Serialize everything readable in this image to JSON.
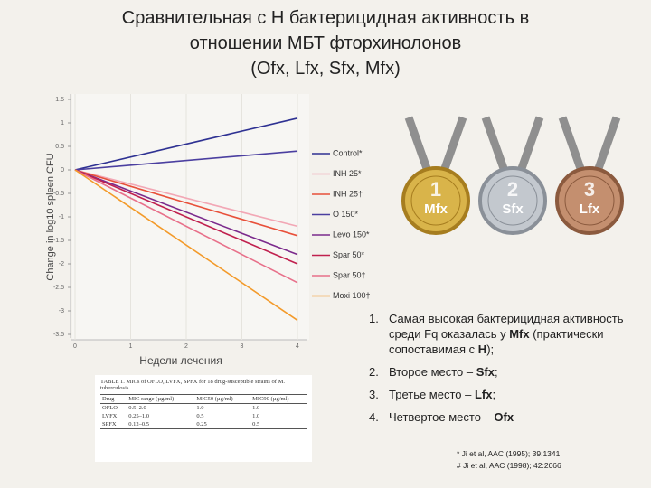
{
  "header": {
    "title_lines": [
      "Сравнительная с Н бактерицидная активность в",
      "отношении МБТ фторхинолонов",
      "(Ofx, Lfx, Sfx, Mfx)"
    ]
  },
  "chart_data": {
    "type": "line",
    "y_label": "Change in log10 spleen CFU",
    "x_label": "Недели лечения",
    "x": [
      0,
      4
    ],
    "xlim": [
      0,
      4
    ],
    "xticks": [
      0,
      1,
      2,
      3,
      4
    ],
    "ylim": [
      -3.5,
      1.5
    ],
    "yticks": [
      1.5,
      1,
      0.5,
      0,
      -0.5,
      -1,
      -1.5,
      -2,
      -2.5,
      -3,
      -3.5
    ],
    "series": [
      {
        "name": "Control*",
        "color": "#2e3192",
        "values": [
          0,
          1.1
        ]
      },
      {
        "name": "INH 25*",
        "color": "#f2a7b5",
        "values": [
          0,
          -1.2
        ]
      },
      {
        "name": "INH 25†",
        "color": "#e8503a",
        "values": [
          0,
          -1.4
        ]
      },
      {
        "name": "O 150*",
        "color": "#4b3fa0",
        "values": [
          0,
          0.4
        ]
      },
      {
        "name": "Levo 150*",
        "color": "#7b2a8c",
        "values": [
          0,
          -1.8
        ]
      },
      {
        "name": "Spar 50*",
        "color": "#c0204e",
        "values": [
          0,
          -2.0
        ]
      },
      {
        "name": "Spar 50†",
        "color": "#e8708a",
        "values": [
          0,
          -2.4
        ]
      },
      {
        "name": "Moxi 100†",
        "color": "#f39a2a",
        "values": [
          0,
          -3.2
        ]
      }
    ]
  },
  "medals": [
    {
      "rank": "1",
      "drug": "Mfx"
    },
    {
      "rank": "2",
      "drug": "Sfx"
    },
    {
      "rank": "3",
      "drug": "Lfx"
    }
  ],
  "list": [
    {
      "number": "1.",
      "parts": [
        "Самая высокая бактерицидная активность среди Fq оказалась у ",
        "Mfx",
        " (практически сопоставимая с ",
        "H",
        ");"
      ]
    },
    {
      "number": "2.",
      "parts": [
        "Второе место – ",
        "Sfx",
        ";"
      ]
    },
    {
      "number": "3.",
      "parts": [
        "Третье место – ",
        "Lfx",
        ";"
      ]
    },
    {
      "number": "4.",
      "parts": [
        "Четвертое место – ",
        "Ofx"
      ]
    }
  ],
  "footnotes": [
    "* Ji et al, AAC (1995); 39:1341",
    "# Ji et al, AAC (1998); 42:2066"
  ],
  "table": {
    "caption": "TABLE 1. MICs of OFLO, LVFX, SPFX for 18 drug-susceptible strains of M. tuberculosis",
    "header": [
      "Drug",
      "MIC range (µg/ml)",
      "MIC50 (µg/ml)",
      "MIC90 (µg/ml)"
    ],
    "rows": [
      [
        "OFLO",
        "0.5–2.0",
        "1.0",
        "1.0"
      ],
      [
        "LVFX",
        "0.25–1.0",
        "0.5",
        "1.0"
      ],
      [
        "SPFX",
        "0.12–0.5",
        "0.25",
        "0.5"
      ]
    ]
  }
}
